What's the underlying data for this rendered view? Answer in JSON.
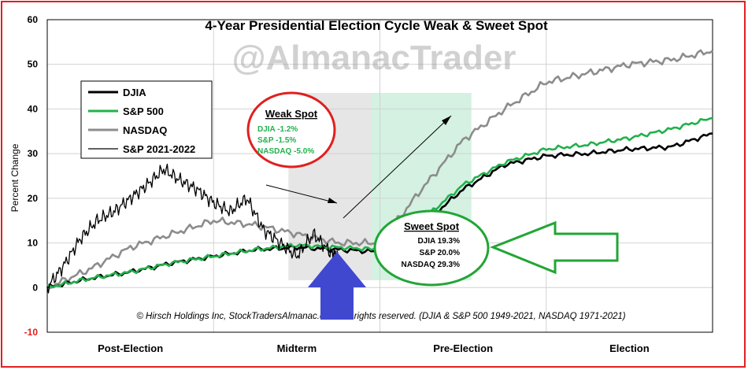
{
  "chart_data": {
    "type": "line",
    "title": "4-Year Presidential Election Cycle Weak & Sweet Spot",
    "watermark": "@AlmanacTrader",
    "ylabel": "Percent Change",
    "ylim": [
      -10,
      60
    ],
    "yticks": [
      "60",
      "50",
      "40",
      "30",
      "20",
      "10",
      "0",
      "-10"
    ],
    "x_categories": [
      "Post-Election",
      "Midterm",
      "Pre-Election",
      "Election"
    ],
    "grid": true,
    "legend_position": "top-left",
    "legend": [
      {
        "label": "DJIA",
        "color": "#000000"
      },
      {
        "label": "S&P 500",
        "color": "#22b14c"
      },
      {
        "label": "NASDAQ",
        "color": "#8c8c8c"
      },
      {
        "label": "S&P 2021-2022",
        "color": "#000000"
      }
    ],
    "series": [
      {
        "name": "DJIA",
        "color": "#000000",
        "x": [
          0,
          0.25,
          0.5,
          0.75,
          1.0,
          1.25,
          1.5,
          1.75,
          2.0,
          2.25,
          2.5,
          2.75,
          3.0,
          3.25,
          3.5,
          3.75,
          4.0
        ],
        "values": [
          0,
          2,
          3.5,
          5.5,
          7,
          8.5,
          9,
          8.5,
          8,
          14,
          22,
          27.5,
          29.5,
          30,
          31,
          31.5,
          34.5
        ]
      },
      {
        "name": "S&P 500",
        "color": "#22b14c",
        "x": [
          0,
          0.25,
          0.5,
          0.75,
          1.0,
          1.25,
          1.5,
          1.75,
          2.0,
          2.25,
          2.5,
          2.75,
          3.0,
          3.25,
          3.5,
          3.75,
          4.0
        ],
        "values": [
          0,
          2,
          3.5,
          5.5,
          7,
          8.5,
          9.5,
          9,
          8.5,
          15,
          23,
          28,
          31,
          32,
          33.5,
          35.5,
          38
        ]
      },
      {
        "name": "NASDAQ",
        "color": "#8c8c8c",
        "x": [
          0,
          0.25,
          0.5,
          0.75,
          1.0,
          1.25,
          1.5,
          1.75,
          2.0,
          2.25,
          2.5,
          2.75,
          3.0,
          3.25,
          3.5,
          3.75,
          4.0
        ],
        "values": [
          0,
          4,
          9,
          12,
          15,
          14,
          12,
          10,
          10,
          22,
          33,
          40,
          46,
          48,
          50,
          51,
          53
        ]
      },
      {
        "name": "S&P 2021-2022",
        "color": "#000000",
        "x": [
          0,
          0.1,
          0.2,
          0.3,
          0.4,
          0.5,
          0.6,
          0.7,
          0.8,
          0.9,
          1.0,
          1.1,
          1.2,
          1.3,
          1.4,
          1.5,
          1.6,
          1.7,
          1.75
        ],
        "values": [
          0,
          5,
          11,
          15,
          17,
          20,
          23,
          26.5,
          24,
          22,
          19,
          17,
          20,
          13,
          10,
          7,
          12,
          8,
          7
        ]
      }
    ],
    "annotations": {
      "weak_spot": {
        "title": "Weak Spot",
        "lines": [
          "DJIA -1.2%",
          "S&P -1.5%",
          "NASDAQ -5.0%"
        ],
        "range": [
          1.45,
          1.95
        ]
      },
      "sweet_spot": {
        "title": "Sweet Spot",
        "lines": [
          "DJIA 19.3%",
          "S&P 20.0%",
          "NASDAQ 29.3%"
        ],
        "range": [
          1.95,
          2.55
        ]
      },
      "footnote": "© Hirsch Holdings Inc, StockTradersAlmanac.com. All rights reserved. (DJIA & S&P 500 1949-2021, NASDAQ 1971-2021)"
    },
    "colors": {
      "weak_shade": "#e6e6e6",
      "sweet_shade": "#cdeedd",
      "weak_circle": "#e0201f",
      "sweet_circle": "#22a535",
      "blue_arrow": "#4048d0",
      "green_arrow": "#22a535",
      "frame": "#e0201f"
    }
  }
}
